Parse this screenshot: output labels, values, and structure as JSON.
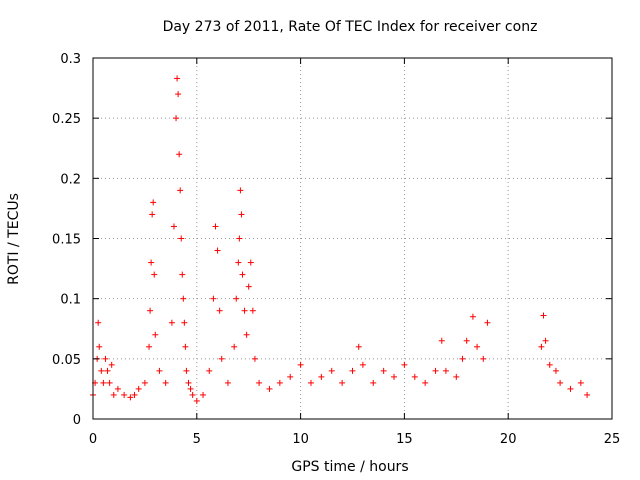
{
  "chart_data": {
    "type": "scatter",
    "title": "Day 273 of 2011, Rate Of TEC Index for receiver conz",
    "xlabel": "GPS time / hours",
    "ylabel": "ROTI / TECUs",
    "xlim": [
      0,
      25
    ],
    "ylim": [
      0,
      0.3
    ],
    "xticks": [
      "0",
      "5",
      "10",
      "15",
      "20",
      "25"
    ],
    "yticks": [
      "0",
      "0.05",
      "0.1",
      "0.15",
      "0.2",
      "0.25",
      "0.3"
    ],
    "grid": true,
    "marker": "+",
    "color": "#ff0000",
    "data_gap_hours": [
      19.0,
      21.6
    ],
    "series": [
      {
        "x": [
          0.0,
          0.1,
          0.2,
          0.25,
          0.3,
          0.4,
          0.5,
          0.6,
          0.7,
          0.8,
          0.9,
          1.0,
          1.2,
          1.5,
          1.8,
          2.0,
          2.2,
          2.5,
          2.7,
          2.75,
          2.8,
          2.85,
          2.9,
          2.95,
          3.0,
          3.2,
          3.5,
          3.8,
          3.9,
          4.0,
          4.05,
          4.1,
          4.15,
          4.2,
          4.25,
          4.3,
          4.35,
          4.4,
          4.45,
          4.5,
          4.6,
          4.7,
          4.8,
          5.0,
          5.3,
          5.6,
          5.8,
          5.9,
          6.0,
          6.1,
          6.2,
          6.5,
          6.8,
          6.9,
          7.0,
          7.05,
          7.1,
          7.15,
          7.2,
          7.3,
          7.4,
          7.5,
          7.6,
          7.7,
          7.8,
          8.0,
          8.5,
          9.0,
          9.5,
          10.0,
          10.5,
          11.0,
          11.5,
          12.0,
          12.5,
          12.8,
          13.0,
          13.5,
          14.0,
          14.5,
          15.0,
          15.5,
          16.0,
          16.5,
          16.8,
          17.0,
          17.5,
          17.8,
          18.0,
          18.3,
          18.5,
          18.8,
          19.0,
          21.6,
          21.7,
          21.8,
          22.0,
          22.3,
          22.5,
          23.0,
          23.5,
          23.8
        ],
        "y": [
          0.02,
          0.03,
          0.05,
          0.08,
          0.06,
          0.04,
          0.03,
          0.05,
          0.04,
          0.03,
          0.045,
          0.02,
          0.025,
          0.02,
          0.018,
          0.02,
          0.025,
          0.03,
          0.06,
          0.09,
          0.13,
          0.17,
          0.18,
          0.12,
          0.07,
          0.04,
          0.03,
          0.08,
          0.16,
          0.25,
          0.283,
          0.27,
          0.22,
          0.19,
          0.15,
          0.12,
          0.1,
          0.08,
          0.06,
          0.04,
          0.03,
          0.025,
          0.02,
          0.015,
          0.02,
          0.04,
          0.1,
          0.16,
          0.14,
          0.09,
          0.05,
          0.03,
          0.06,
          0.1,
          0.13,
          0.15,
          0.19,
          0.17,
          0.12,
          0.09,
          0.07,
          0.11,
          0.13,
          0.09,
          0.05,
          0.03,
          0.025,
          0.03,
          0.035,
          0.045,
          0.03,
          0.035,
          0.04,
          0.03,
          0.04,
          0.06,
          0.045,
          0.03,
          0.04,
          0.035,
          0.045,
          0.035,
          0.03,
          0.04,
          0.065,
          0.04,
          0.035,
          0.05,
          0.065,
          0.085,
          0.06,
          0.05,
          0.08,
          0.06,
          0.086,
          0.065,
          0.045,
          0.04,
          0.03,
          0.025,
          0.03,
          0.02
        ]
      }
    ]
  }
}
